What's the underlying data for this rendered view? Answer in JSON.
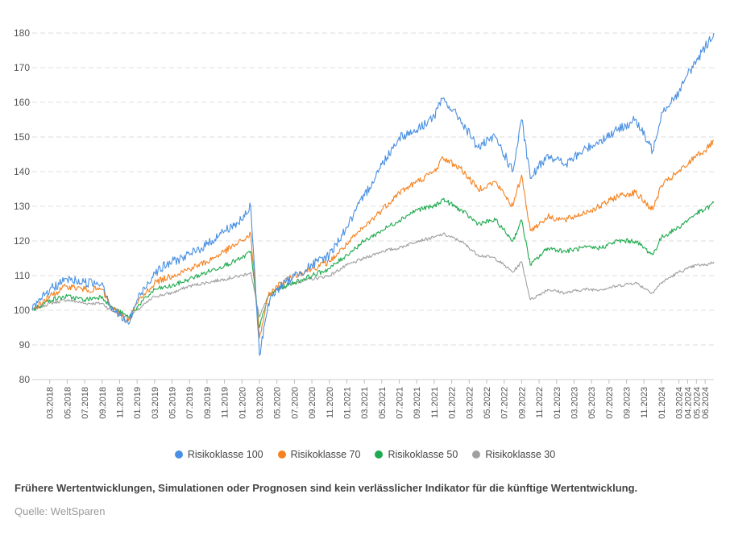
{
  "chart_data": {
    "type": "line",
    "ylim": [
      80,
      180
    ],
    "yticks": [
      80,
      90,
      100,
      110,
      120,
      130,
      140,
      150,
      160,
      170,
      180
    ],
    "grid": "horizontal dashed",
    "legend_position": "bottom-center",
    "x_tick_labels": [
      "03.2018",
      "05.2018",
      "07.2018",
      "09.2018",
      "11.2018",
      "01.2019",
      "03.2019",
      "05.2019",
      "07.2019",
      "09.2019",
      "11.2019",
      "01.2020",
      "03.2020",
      "05.2020",
      "07.2020",
      "09.2020",
      "11.2020",
      "01.2021",
      "03.2021",
      "05.2021",
      "07.2021",
      "09.2021",
      "11.2021",
      "01.2022",
      "03.2022",
      "05.2022",
      "07.2022",
      "09.2022",
      "11.2022",
      "01.2023",
      "03.2023",
      "05.2023",
      "07.2023",
      "09.2023",
      "11.2023",
      "01.2024",
      "03.2024",
      "04.2024",
      "05.2024",
      "06.2024"
    ],
    "x": [
      "01.2018",
      "03.2018",
      "05.2018",
      "07.2018",
      "09.2018",
      "10.2018",
      "12.2018",
      "01.2019",
      "03.2019",
      "05.2019",
      "07.2019",
      "09.2019",
      "11.2019",
      "01.2020",
      "02.2020",
      "03.2020",
      "04.2020",
      "05.2020",
      "07.2020",
      "09.2020",
      "11.2020",
      "01.2021",
      "03.2021",
      "05.2021",
      "07.2021",
      "09.2021",
      "11.2021",
      "12.2021",
      "02.2022",
      "04.2022",
      "06.2022",
      "08.2022",
      "09.2022",
      "10.2022",
      "12.2022",
      "02.2023",
      "04.2023",
      "06.2023",
      "08.2023",
      "10.2023",
      "12.2023",
      "01.2024",
      "03.2024",
      "04.2024",
      "05.2024",
      "06.2024",
      "07.2024"
    ],
    "series": [
      {
        "name": "Risikoklasse 100",
        "color": "#4a90e2",
        "values": [
          100,
          106,
          109,
          108,
          108,
          101,
          96,
          103,
          111,
          114,
          116,
          119,
          123,
          126,
          130,
          87,
          102,
          106,
          110,
          113,
          116,
          124,
          133,
          142,
          150,
          152,
          156,
          161,
          155,
          147,
          150,
          140,
          155,
          138,
          145,
          142,
          146,
          149,
          152,
          155,
          146,
          157,
          163,
          168,
          172,
          176,
          180
        ]
      },
      {
        "name": "Risikoklasse 70",
        "color": "#f5821f",
        "values": [
          100,
          104,
          107,
          106,
          106,
          101,
          97,
          102,
          108,
          110,
          112,
          114,
          117,
          120,
          122,
          92,
          104,
          107,
          110,
          112,
          114,
          119,
          124,
          129,
          134,
          137,
          140,
          144,
          141,
          135,
          137,
          130,
          139,
          123,
          127,
          126,
          128,
          130,
          133,
          134,
          129,
          136,
          140,
          142,
          145,
          146,
          149
        ]
      },
      {
        "name": "Risikoklasse 50",
        "color": "#1eaa4e",
        "values": [
          100,
          103,
          104,
          103,
          104,
          101,
          98,
          101,
          106,
          107,
          109,
          111,
          113,
          115,
          117,
          95,
          104,
          106,
          108,
          110,
          112,
          116,
          120,
          123,
          126,
          129,
          130,
          132,
          129,
          125,
          126,
          120,
          126,
          113,
          118,
          117,
          118,
          118,
          120,
          120,
          116,
          121,
          124,
          126,
          128,
          129,
          131
        ]
      },
      {
        "name": "Risikoklasse 30",
        "color": "#a0a0a0",
        "values": [
          100,
          102,
          103,
          102,
          102,
          100,
          98,
          100,
          104,
          105,
          107,
          108,
          109,
          110,
          111,
          98,
          104,
          106,
          108,
          109,
          110,
          113,
          115,
          117,
          118,
          120,
          121,
          122,
          120,
          116,
          115,
          111,
          114,
          103,
          106,
          105,
          106,
          106,
          107,
          108,
          105,
          108,
          111,
          112,
          113,
          113,
          114
        ]
      }
    ]
  },
  "legend": [
    {
      "label": "Risikoklasse 100",
      "color": "#4a90e2"
    },
    {
      "label": "Risikoklasse 70",
      "color": "#f5821f"
    },
    {
      "label": "Risikoklasse 50",
      "color": "#1eaa4e"
    },
    {
      "label": "Risikoklasse 30",
      "color": "#a0a0a0"
    }
  ],
  "disclaimer": "Frühere Wertentwicklungen, Simulationen oder Prognosen sind kein verlässlicher Indikator für die künftige Wertentwicklung.",
  "source": "Quelle: WeltSparen"
}
